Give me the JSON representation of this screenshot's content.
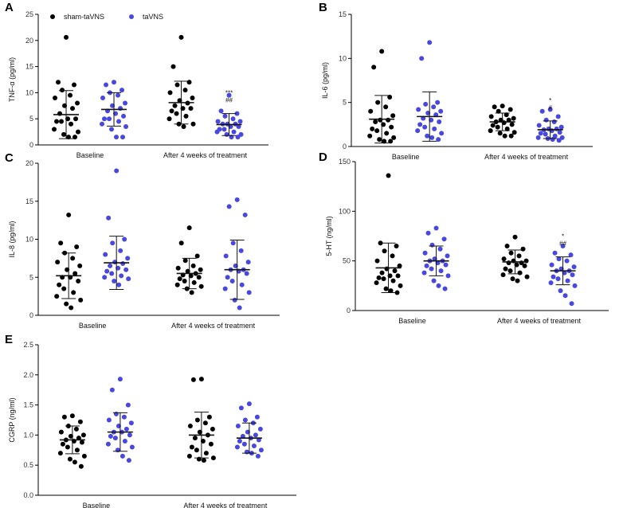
{
  "colors": {
    "sham": "#000000",
    "tavns": "#4848e0"
  },
  "legend": [
    {
      "name": "sham-taVNS",
      "color": "#000000"
    },
    {
      "name": "taVNS",
      "color": "#4848e0"
    }
  ],
  "chart_data": [
    {
      "panel": "A",
      "type": "scatter",
      "ylabel": "TNF-α (pg/ml)",
      "ylim": [
        0,
        25
      ],
      "yticks": [
        "0",
        "5",
        "10",
        "15",
        "20",
        "25"
      ],
      "categories": [
        "Baseline",
        "After 4 weeks of treatment"
      ],
      "series": [
        {
          "name": "sham-taVNS",
          "groups": [
            {
              "mean": 5.8,
              "sd": 4.6,
              "values": [
                20.6,
                12,
                11.5,
                10.5,
                9.5,
                9,
                8,
                7.5,
                7,
                6,
                5,
                5,
                4.5,
                4.5,
                4,
                3,
                2.5,
                2,
                1.5,
                1.5
              ]
            },
            {
              "mean": 8.1,
              "sd": 4.1,
              "values": [
                20.6,
                15,
                12,
                11.5,
                10.5,
                10,
                9,
                8.5,
                8,
                7.5,
                7,
                7,
                6.5,
                6,
                5.5,
                5,
                4,
                4,
                3.5
              ]
            }
          ]
        },
        {
          "name": "taVNS",
          "groups": [
            {
              "mean": 6.8,
              "sd": 3.2,
              "values": [
                12,
                11.5,
                10.5,
                10,
                9.5,
                9,
                8,
                7.5,
                7,
                6.5,
                6,
                5.5,
                5,
                5,
                4.5,
                4,
                3.5,
                3,
                1.5,
                1.5
              ]
            },
            {
              "mean": 3.9,
              "sd": 2.1,
              "values": [
                9.5,
                6.5,
                6,
                5.5,
                5,
                4.5,
                4.5,
                4,
                4,
                4,
                3.5,
                3.5,
                3,
                3,
                2.5,
                2.5,
                2,
                2,
                1.5,
                1.5
              ]
            }
          ]
        }
      ],
      "annotations": [
        "***",
        "##"
      ]
    },
    {
      "panel": "B",
      "type": "scatter",
      "ylabel": "IL-6 (pg/ml)",
      "ylim": [
        0,
        15
      ],
      "yticks": [
        "0",
        "5",
        "10",
        "15"
      ],
      "categories": [
        "Baseline",
        "After 4 weeks of treatment"
      ],
      "series": [
        {
          "name": "sham-taVNS",
          "groups": [
            {
              "mean": 3.1,
              "sd": 2.7,
              "values": [
                10.8,
                9,
                5.6,
                5,
                4.5,
                4,
                3.5,
                3,
                3,
                2.8,
                2.5,
                2.2,
                2,
                1.8,
                1.5,
                1.2,
                1,
                0.8,
                0.6,
                0.6
              ]
            },
            {
              "mean": 2.8,
              "sd": 1.0,
              "values": [
                4.6,
                4.5,
                4.2,
                4,
                3.6,
                3.4,
                3.2,
                3,
                3,
                2.8,
                2.7,
                2.5,
                2.4,
                2.2,
                2,
                1.8,
                1.6,
                1.5,
                1.2,
                1.2
              ]
            }
          ]
        },
        {
          "name": "taVNS",
          "groups": [
            {
              "mean": 3.4,
              "sd": 2.8,
              "values": [
                11.8,
                10,
                5,
                4.8,
                4.5,
                4.2,
                4,
                3.8,
                3.6,
                3.2,
                3,
                2.8,
                2.5,
                2.2,
                2,
                1.8,
                1.5,
                1.2,
                1,
                0.8
              ]
            },
            {
              "mean": 1.9,
              "sd": 1.0,
              "values": [
                4.2,
                4,
                3.4,
                3,
                2.8,
                2.4,
                2.2,
                2,
                2,
                1.9,
                1.8,
                1.6,
                1.5,
                1.4,
                1.2,
                1,
                1,
                0.9,
                0.8,
                0.7
              ]
            }
          ]
        }
      ],
      "annotations": [
        "*",
        "#"
      ]
    },
    {
      "panel": "C",
      "type": "scatter",
      "ylabel": "IL-8 (pg/ml)",
      "ylim": [
        0,
        20
      ],
      "yticks": [
        "0",
        "5",
        "10",
        "15",
        "20"
      ],
      "categories": [
        "Baseline",
        "After 4 weeks of treatment"
      ],
      "series": [
        {
          "name": "sham-taVNS",
          "groups": [
            {
              "mean": 5.2,
              "sd": 3.0,
              "values": [
                13.2,
                9.5,
                9,
                8.2,
                7.5,
                7,
                6.5,
                6,
                5.5,
                5,
                5,
                4.5,
                4,
                3.5,
                3,
                2.5,
                2,
                1.5,
                1
              ]
            },
            {
              "mean": 5.5,
              "sd": 2.0,
              "values": [
                11.5,
                9.5,
                7.8,
                7.2,
                6.5,
                6.2,
                6,
                5.8,
                5.5,
                5.3,
                5.2,
                5,
                4.8,
                4.5,
                4.3,
                4,
                3.8,
                3.5,
                3
              ]
            }
          ]
        },
        {
          "name": "taVNS",
          "groups": [
            {
              "mean": 6.9,
              "sd": 3.5,
              "values": [
                19,
                12.8,
                10,
                9.5,
                8.5,
                8,
                7.5,
                7,
                6.8,
                6.5,
                6.2,
                6,
                5.8,
                5.5,
                5.2,
                5,
                4.8,
                4.5,
                4
              ]
            },
            {
              "mean": 6.0,
              "sd": 3.9,
              "values": [
                15.2,
                14.3,
                13.2,
                9.5,
                8.5,
                7.8,
                7,
                6.5,
                6,
                6,
                5.8,
                5.5,
                5,
                4.5,
                4,
                3.5,
                3,
                2,
                1
              ]
            }
          ]
        }
      ],
      "annotations": []
    },
    {
      "panel": "D",
      "type": "scatter",
      "ylabel": "5-HT (ng/ml)",
      "ylim": [
        0,
        150
      ],
      "yticks": [
        "0",
        "50",
        "100",
        "150"
      ],
      "categories": [
        "Baseline",
        "After 4 weeks of treatment"
      ],
      "series": [
        {
          "name": "sham-taVNS",
          "groups": [
            {
              "mean": 43,
              "sd": 25,
              "values": [
                136,
                68,
                65,
                60,
                55,
                50,
                45,
                42,
                40,
                38,
                35,
                35,
                33,
                32,
                30,
                28,
                25,
                22,
                20,
                18
              ]
            },
            {
              "mean": 49,
              "sd": 12,
              "values": [
                74,
                65,
                62,
                58,
                55,
                52,
                50,
                50,
                48,
                48,
                46,
                45,
                42,
                40,
                38,
                36,
                34,
                32,
                30
              ]
            }
          ]
        },
        {
          "name": "taVNS",
          "groups": [
            {
              "mean": 50,
              "sd": 15,
              "values": [
                83,
                78,
                72,
                66,
                62,
                58,
                55,
                52,
                50,
                50,
                48,
                46,
                45,
                42,
                40,
                38,
                35,
                30,
                25,
                22
              ]
            },
            {
              "mean": 40,
              "sd": 14,
              "values": [
                65,
                58,
                56,
                52,
                50,
                46,
                44,
                42,
                40,
                40,
                38,
                36,
                34,
                32,
                30,
                28,
                25,
                20,
                15,
                7
              ]
            }
          ]
        }
      ],
      "annotations": [
        "*",
        "##"
      ]
    },
    {
      "panel": "E",
      "type": "scatter",
      "ylabel": "CGRP (ng/ml)",
      "ylim": [
        0,
        2.5
      ],
      "yticks": [
        "0.0",
        "0.5",
        "1.0",
        "1.5",
        "2.0",
        "2.5"
      ],
      "categories": [
        "Baseline",
        "After 4 weeks of treatment"
      ],
      "series": [
        {
          "name": "sham-taVNS",
          "groups": [
            {
              "mean": 0.92,
              "sd": 0.23,
              "values": [
                1.32,
                1.3,
                1.22,
                1.15,
                1.1,
                1.05,
                1.0,
                0.98,
                0.95,
                0.92,
                0.9,
                0.88,
                0.85,
                0.8,
                0.75,
                0.7,
                0.65,
                0.6,
                0.55,
                0.48
              ]
            },
            {
              "mean": 1.0,
              "sd": 0.38,
              "values": [
                1.93,
                1.92,
                1.3,
                1.25,
                1.2,
                1.15,
                1.1,
                1.05,
                1.0,
                0.95,
                0.9,
                0.85,
                0.8,
                0.75,
                0.7,
                0.65,
                0.62,
                0.6,
                0.58
              ]
            }
          ]
        },
        {
          "name": "taVNS",
          "groups": [
            {
              "mean": 1.05,
              "sd": 0.32,
              "values": [
                1.93,
                1.75,
                1.5,
                1.35,
                1.3,
                1.25,
                1.2,
                1.15,
                1.1,
                1.05,
                1.05,
                1.0,
                0.98,
                0.95,
                0.9,
                0.85,
                0.8,
                0.75,
                0.65,
                0.58
              ]
            },
            {
              "mean": 0.95,
              "sd": 0.25,
              "values": [
                1.52,
                1.45,
                1.3,
                1.25,
                1.2,
                1.15,
                1.1,
                1.05,
                1.0,
                0.98,
                0.95,
                0.92,
                0.9,
                0.85,
                0.82,
                0.8,
                0.75,
                0.72,
                0.7,
                0.65
              ]
            }
          ]
        }
      ],
      "annotations": []
    }
  ]
}
